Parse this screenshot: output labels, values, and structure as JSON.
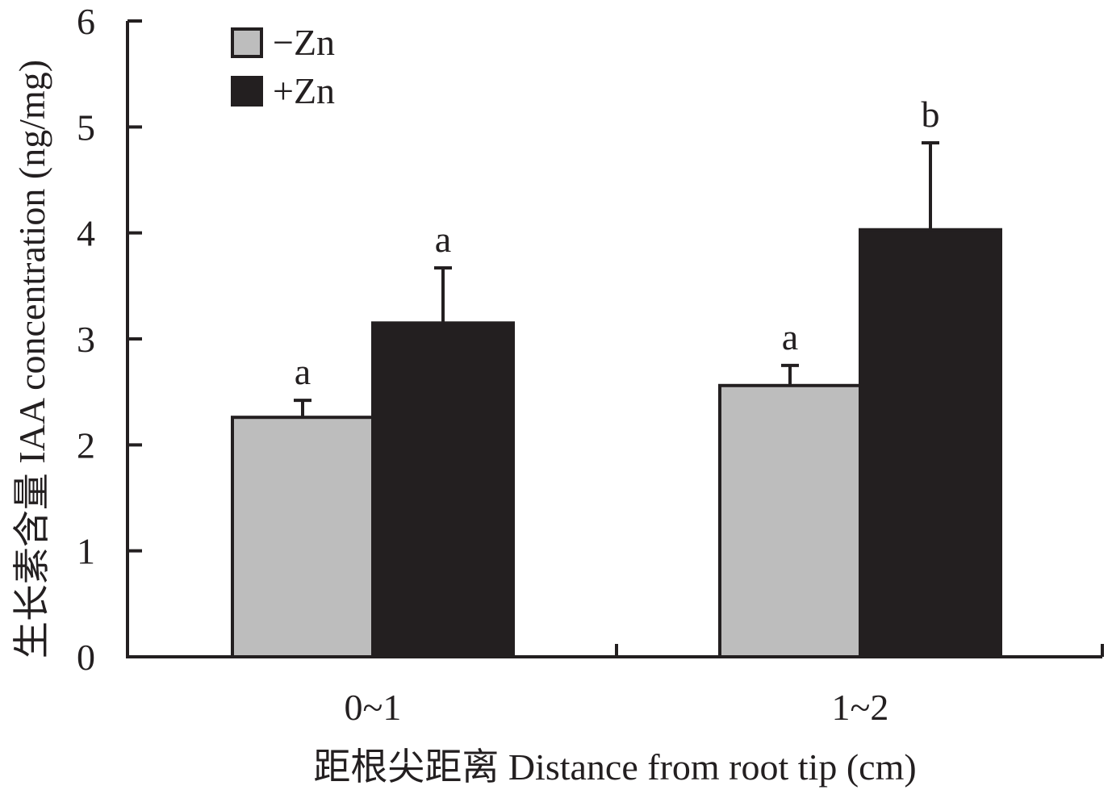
{
  "chart_data": {
    "type": "bar",
    "xlabel": "距根尖距离 Distance from root tip (cm)",
    "ylabel": "生长素含量 IAA concentration (ng/mg)",
    "ylim": [
      0,
      6
    ],
    "yticks": [
      0,
      1,
      2,
      3,
      4,
      5,
      6
    ],
    "grid": false,
    "legend_position": "top-left",
    "categories": [
      "0~1",
      "1~2"
    ],
    "series": [
      {
        "name": "−Zn",
        "color": "#bdbdbd",
        "values": [
          2.26,
          2.56
        ],
        "errors": [
          0.16,
          0.19
        ],
        "labels": [
          "a",
          "a"
        ]
      },
      {
        "name": "+Zn",
        "color": "#231f20",
        "values": [
          3.15,
          4.03
        ],
        "errors": [
          0.52,
          0.82
        ],
        "labels": [
          "a",
          "b"
        ]
      }
    ]
  }
}
